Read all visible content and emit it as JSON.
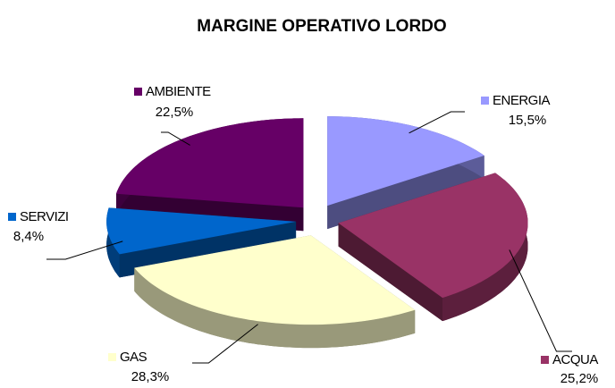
{
  "chart_data": {
    "type": "pie3d",
    "title": "MARGINE OPERATIVO LORDO",
    "categories": [
      "ENERGIA",
      "ACQUA",
      "GAS",
      "SERVIZI",
      "AMBIENTE"
    ],
    "values": [
      15.5,
      25.2,
      28.3,
      8.4,
      22.5
    ],
    "value_labels": [
      "15,5%",
      "25,2%",
      "28,3%",
      "8,4%",
      "22,5%"
    ],
    "colors": [
      "#9999ff",
      "#993366",
      "#ffffcc",
      "#0066cc",
      "#660066"
    ]
  }
}
